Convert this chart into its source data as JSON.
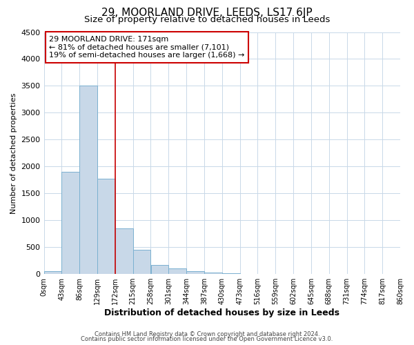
{
  "title": "29, MOORLAND DRIVE, LEEDS, LS17 6JP",
  "subtitle": "Size of property relative to detached houses in Leeds",
  "xlabel": "Distribution of detached houses by size in Leeds",
  "ylabel": "Number of detached properties",
  "bin_edges": [
    0,
    43,
    86,
    129,
    172,
    215,
    258,
    301,
    344,
    387,
    430,
    473,
    516,
    559,
    602,
    645,
    688,
    731,
    774,
    817,
    860
  ],
  "bar_heights": [
    50,
    1900,
    3500,
    1775,
    850,
    450,
    175,
    100,
    50,
    30,
    20,
    0,
    0,
    0,
    0,
    0,
    0,
    0,
    0,
    0
  ],
  "bar_color": "#c8d8e8",
  "bar_edge_color": "#7ab0d0",
  "vline_x": 172,
  "vline_color": "#cc0000",
  "ylim": [
    0,
    4500
  ],
  "yticks": [
    0,
    500,
    1000,
    1500,
    2000,
    2500,
    3000,
    3500,
    4000,
    4500
  ],
  "tick_labels": [
    "0sqm",
    "43sqm",
    "86sqm",
    "129sqm",
    "172sqm",
    "215sqm",
    "258sqm",
    "301sqm",
    "344sqm",
    "387sqm",
    "430sqm",
    "473sqm",
    "516sqm",
    "559sqm",
    "602sqm",
    "645sqm",
    "688sqm",
    "731sqm",
    "774sqm",
    "817sqm",
    "860sqm"
  ],
  "annotation_title": "29 MOORLAND DRIVE: 171sqm",
  "annotation_line1": "← 81% of detached houses are smaller (7,101)",
  "annotation_line2": "19% of semi-detached houses are larger (1,668) →",
  "annotation_box_color": "#ffffff",
  "annotation_box_edge_color": "#cc0000",
  "footer1": "Contains HM Land Registry data © Crown copyright and database right 2024.",
  "footer2": "Contains public sector information licensed under the Open Government Licence v3.0.",
  "bg_color": "#ffffff",
  "grid_color": "#c8d8e8",
  "title_fontsize": 11,
  "subtitle_fontsize": 9.5,
  "xlabel_fontsize": 9,
  "ylabel_fontsize": 8,
  "tick_fontsize": 7,
  "ytick_fontsize": 8,
  "annot_fontsize": 8,
  "footer_fontsize": 6
}
